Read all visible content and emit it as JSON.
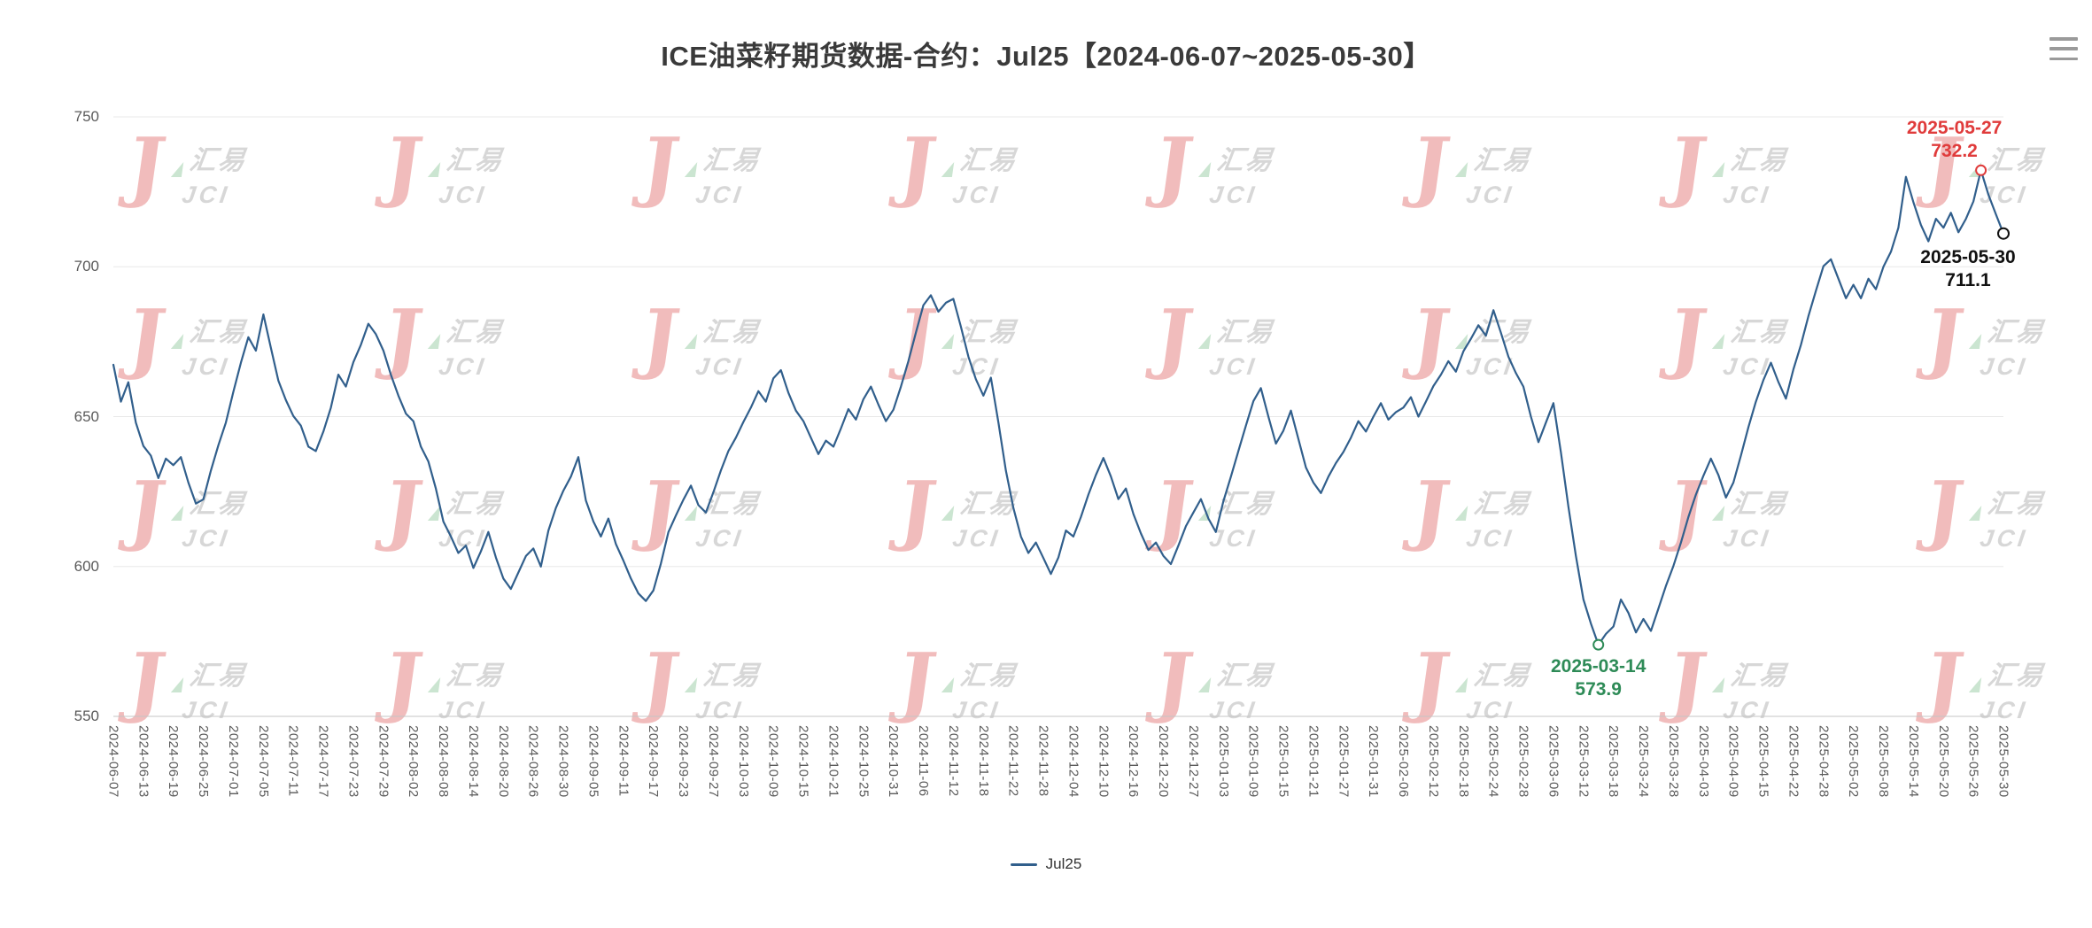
{
  "toolbox": {
    "menu_icon": "hamburger-menu-icon"
  },
  "watermark": {
    "letter": "J",
    "cn": "汇易",
    "en": "JCI",
    "colors": {
      "red": "#e26d6d",
      "gray": "#a8a8a8",
      "green": "#8ec79a"
    }
  },
  "chart_data": {
    "type": "line",
    "title": "ICE油菜籽期货数据-合约：Jul25【2024-06-07~2025-05-30】",
    "xlabel": "",
    "ylabel": "",
    "ylim": [
      550,
      750
    ],
    "yticks": [
      550,
      600,
      650,
      700,
      750
    ],
    "grid": true,
    "legend_position": "bottom",
    "points_per_tick": 4,
    "x_tick_labels": [
      "2024-06-07",
      "2024-06-13",
      "2024-06-19",
      "2024-06-25",
      "2024-07-01",
      "2024-07-05",
      "2024-07-11",
      "2024-07-17",
      "2024-07-23",
      "2024-07-29",
      "2024-08-02",
      "2024-08-08",
      "2024-08-14",
      "2024-08-20",
      "2024-08-26",
      "2024-08-30",
      "2024-09-05",
      "2024-09-11",
      "2024-09-17",
      "2024-09-23",
      "2024-09-27",
      "2024-10-03",
      "2024-10-09",
      "2024-10-15",
      "2024-10-21",
      "2024-10-25",
      "2024-10-31",
      "2024-11-06",
      "2024-11-12",
      "2024-11-18",
      "2024-11-22",
      "2024-11-28",
      "2024-12-04",
      "2024-12-10",
      "2024-12-16",
      "2024-12-20",
      "2024-12-27",
      "2025-01-03",
      "2025-01-09",
      "2025-01-15",
      "2025-01-21",
      "2025-01-27",
      "2025-01-31",
      "2025-02-06",
      "2025-02-12",
      "2025-02-18",
      "2025-02-24",
      "2025-02-28",
      "2025-03-06",
      "2025-03-12",
      "2025-03-18",
      "2025-03-24",
      "2025-03-28",
      "2025-04-03",
      "2025-04-09",
      "2025-04-15",
      "2025-04-22",
      "2025-04-28",
      "2025-05-02",
      "2025-05-08",
      "2025-05-14",
      "2025-05-20",
      "2025-05-26",
      "2025-05-30"
    ],
    "series": [
      {
        "name": "Jul25",
        "color": "#315f8c",
        "values": [
          667.3,
          655.0,
          661.5,
          648.0,
          640.2,
          637.0,
          629.5,
          636.0,
          633.8,
          636.5,
          628.0,
          621.0,
          622.4,
          632.0,
          640.5,
          648.0,
          658.3,
          668.0,
          676.5,
          672.0,
          684.1,
          673.0,
          662.0,
          655.5,
          650.2,
          647.0,
          640.0,
          638.5,
          645.0,
          653.0,
          664.0,
          660.0,
          668.2,
          674.0,
          681.0,
          677.5,
          672.0,
          664.0,
          657.0,
          651.0,
          648.5,
          640.0,
          635.0,
          626.0,
          615.0,
          610.0,
          604.5,
          607.0,
          599.5,
          605.0,
          611.5,
          603.0,
          596.0,
          592.5,
          598.0,
          603.5,
          606.0,
          600.0,
          612.0,
          619.5,
          625.3,
          630.0,
          636.5,
          622.0,
          615.0,
          610.0,
          616.0,
          607.5,
          602.0,
          596.0,
          591.0,
          588.5,
          592.0,
          601.0,
          611.5,
          617.0,
          622.3,
          627.0,
          620.5,
          618.0,
          624.8,
          632.0,
          638.5,
          643.0,
          648.2,
          653.0,
          658.5,
          655.0,
          662.8,
          665.5,
          658.0,
          652.0,
          648.5,
          643.0,
          637.5,
          642.0,
          640.0,
          646.0,
          652.5,
          649.0,
          655.8,
          660.0,
          654.0,
          648.5,
          652.3,
          660.0,
          668.5,
          678.0,
          687.2,
          690.5,
          685.0,
          688.0,
          689.3,
          680.0,
          670.0,
          662.5,
          657.0,
          663.0,
          648.0,
          632.0,
          619.5,
          610.0,
          604.5,
          608.0,
          602.8,
          597.5,
          603.0,
          612.0,
          610.0,
          616.5,
          624.0,
          630.5,
          636.2,
          630.0,
          622.5,
          626.0,
          617.5,
          611.0,
          605.5,
          608.0,
          603.5,
          600.8,
          607.0,
          613.5,
          618.0,
          622.5,
          616.0,
          611.5,
          621.8,
          630.0,
          638.5,
          647.0,
          655.2,
          659.5,
          650.0,
          641.0,
          645.3,
          652.0,
          642.5,
          633.0,
          628.0,
          624.5,
          630.0,
          634.5,
          638.2,
          643.0,
          648.5,
          645.0,
          650.0,
          654.5,
          649.0,
          651.5,
          653.0,
          656.5,
          650.0,
          655.0,
          660.2,
          664.0,
          668.5,
          665.0,
          671.8,
          676.0,
          680.5,
          677.0,
          685.5,
          678.0,
          670.0,
          664.5,
          660.0,
          650.0,
          641.5,
          648.0,
          654.5,
          638.0,
          620.0,
          603.5,
          589.0,
          581.0,
          573.9,
          577.5,
          580.0,
          589.0,
          584.5,
          578.0,
          582.5,
          578.5,
          586.0,
          593.5,
          600.2,
          608.0,
          616.5,
          624.0,
          630.3,
          636.0,
          630.5,
          623.0,
          628.0,
          637.0,
          646.5,
          655.0,
          662.2,
          668.0,
          661.5,
          656.0,
          665.8,
          674.0,
          683.5,
          692.0,
          700.2,
          702.5,
          696.0,
          689.5,
          694.0,
          689.5,
          696.0,
          692.5,
          700.0,
          705.0,
          713.0,
          730.0,
          721.5,
          714.0,
          708.5,
          716.0,
          713.0,
          718.0,
          711.5,
          716.0,
          721.8,
          732.2,
          724.0,
          717.5,
          711.1
        ]
      }
    ],
    "annotations": [
      {
        "type": "max",
        "date": "2025-05-27",
        "value": 732.2,
        "index": 249,
        "color": "#e03b3b"
      },
      {
        "type": "last",
        "date": "2025-05-30",
        "value": 711.1,
        "index": 252,
        "color": "#111111"
      },
      {
        "type": "min",
        "date": "2025-03-14",
        "value": 573.9,
        "index": 198,
        "color": "#2e8b57"
      }
    ]
  }
}
